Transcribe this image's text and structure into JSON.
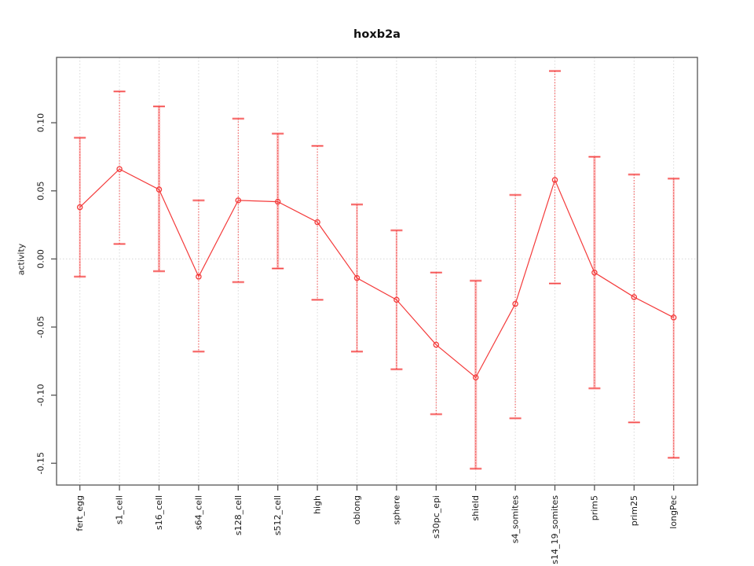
{
  "chart_data": {
    "type": "line",
    "title": "hoxb2a",
    "xlabel": "",
    "ylabel": "activity",
    "categories": [
      "fert_egg",
      "s1_cell",
      "s16_cell",
      "s64_cell",
      "s128_cell",
      "s512_cell",
      "high",
      "oblong",
      "sphere",
      "s30pc_epi",
      "shield",
      "s4_somites",
      "s14_19_somites",
      "prim5",
      "prim25",
      "longPec"
    ],
    "series": [
      {
        "name": "hoxb2a activity",
        "values": [
          0.038,
          0.066,
          0.051,
          -0.013,
          0.043,
          0.042,
          0.027,
          -0.014,
          -0.03,
          -0.063,
          -0.087,
          -0.033,
          0.058,
          -0.01,
          -0.028,
          -0.043
        ],
        "err_high": [
          0.089,
          0.123,
          0.112,
          0.043,
          0.103,
          0.092,
          0.083,
          0.04,
          0.021,
          -0.01,
          -0.016,
          0.047,
          0.138,
          0.075,
          0.062,
          0.059
        ],
        "err_low": [
          -0.013,
          0.011,
          -0.009,
          -0.068,
          -0.017,
          -0.007,
          -0.03,
          -0.068,
          -0.081,
          -0.114,
          -0.154,
          -0.117,
          -0.018,
          -0.095,
          -0.12,
          -0.146
        ]
      }
    ],
    "error_bar_weights": [
      "medium",
      "thin",
      "thick",
      "thin",
      "thin",
      "thick",
      "thin",
      "medium",
      "medium",
      "thin",
      "thick",
      "thin",
      "thin",
      "thick",
      "thin",
      "medium"
    ],
    "yticks": [
      "0.10",
      "0.05",
      "0.00",
      "-0.05",
      "-0.10",
      "-0.15"
    ],
    "ytick_values": [
      0.1,
      0.05,
      0.0,
      -0.05,
      -0.1,
      -0.15
    ],
    "ylim": [
      -0.166,
      0.148
    ],
    "grid": {
      "vertical_dotted": true,
      "zero_line_dotted": true
    },
    "legend": "none",
    "colors": {
      "series": "#f43b3b",
      "series_soft": "#fa8484",
      "grid": "#d8d8d8",
      "axis": "#555555",
      "text": "#1a1a1a"
    }
  }
}
